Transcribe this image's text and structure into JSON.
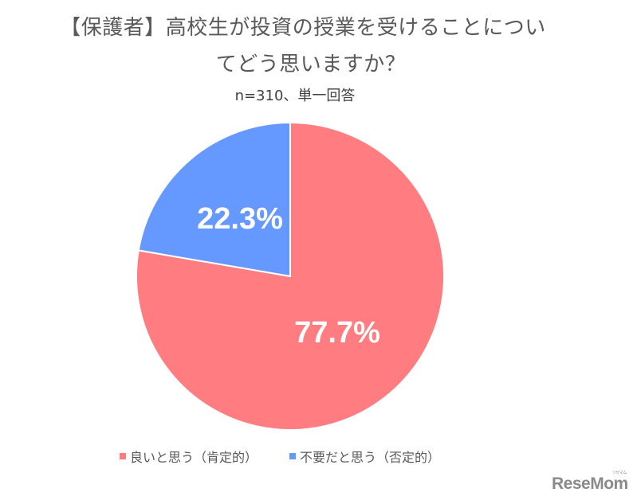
{
  "chart_data": {
    "type": "pie",
    "title": "【保護者】高校生が投資の授業を受けることについてどう思いますか？",
    "subtitle": "n=310、単一回答",
    "categories": [
      "良いと思う（肯定的）",
      "不要だと思う（否定的）"
    ],
    "values": [
      77.7,
      22.3
    ],
    "data_labels": [
      "77.7%",
      "22.3%"
    ],
    "colors": [
      "#FF7C80",
      "#6699FF"
    ],
    "legend_position": "bottom",
    "start_angle": "12 o'clock, blue slice counter-clockwise"
  },
  "header": {
    "title_line1": "【保護者】高校生が投資の授業を受けることについ",
    "title_line2": "てどう思いますか？",
    "subtitle": "n=310、単一回答"
  },
  "labels": {
    "positive": "77.7%",
    "negative": "22.3%"
  },
  "legend": {
    "items": [
      {
        "label": "良いと思う（肯定的）",
        "color": "#FF7C80"
      },
      {
        "label": "不要だと思う（否定的）",
        "color": "#6699FF"
      }
    ]
  },
  "watermark": {
    "text": "ReseMom",
    "small": "リセマム"
  }
}
